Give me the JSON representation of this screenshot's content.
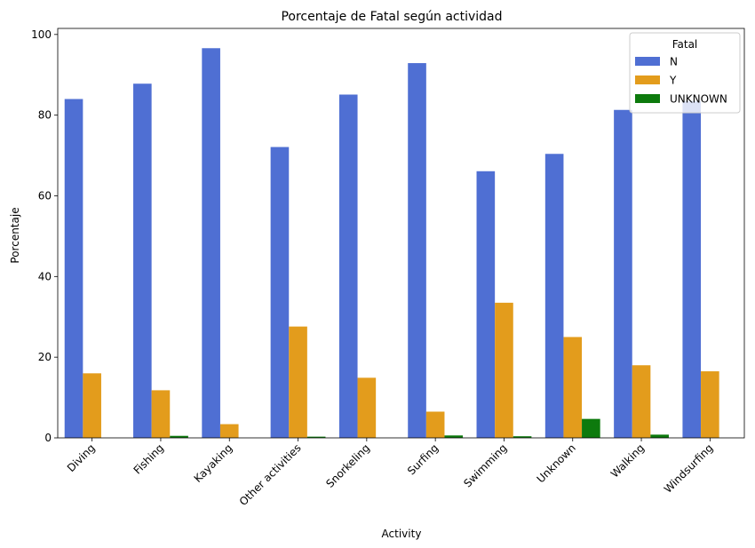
{
  "chart_data": {
    "type": "bar",
    "title": "Porcentaje de Fatal según actividad",
    "xlabel": "Activity",
    "ylabel": "Porcentaje",
    "ylim": [
      0,
      101.5
    ],
    "yticks": [
      0,
      20,
      40,
      60,
      80,
      100
    ],
    "grid": false,
    "legend_position": "top-right",
    "legend_title": "Fatal",
    "categories": [
      "Diving",
      "Fishing",
      "Kayaking",
      "Other activities",
      "Snorkeling",
      "Surfing",
      "Swimming",
      "Unknown",
      "Walking",
      "Windsurfing"
    ],
    "series": [
      {
        "name": "N",
        "color": "#4f6fd3",
        "values": [
          84.0,
          87.8,
          96.6,
          72.1,
          85.1,
          92.9,
          66.1,
          70.4,
          81.3,
          83.5
        ]
      },
      {
        "name": "Y",
        "color": "#e39c1c",
        "values": [
          16.0,
          11.8,
          3.4,
          27.6,
          14.9,
          6.5,
          33.5,
          25.0,
          18.0,
          16.5
        ]
      },
      {
        "name": "UNKNOWN",
        "color": "#0d7a0d",
        "values": [
          0,
          0.5,
          0,
          0.3,
          0,
          0.6,
          0.4,
          4.7,
          0.8,
          0
        ]
      }
    ]
  }
}
